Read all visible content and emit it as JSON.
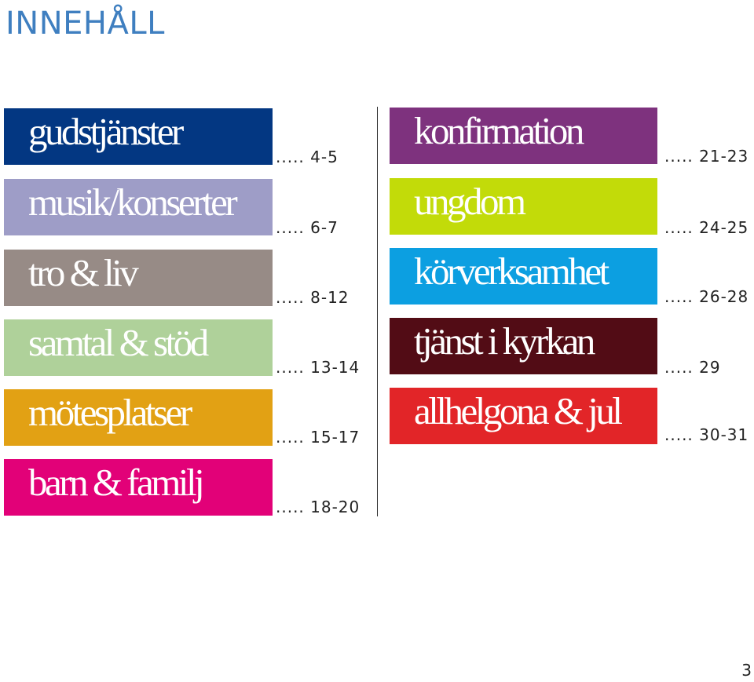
{
  "title": "INNEHÅLL",
  "page_number": "3",
  "left_items": [
    {
      "label": "gudstjänster",
      "pages": "..... 4-5",
      "color": "#033782"
    },
    {
      "label": "musik/konserter",
      "pages": "..... 6-7",
      "color": "#9e9dc7"
    },
    {
      "label": "tro & liv",
      "pages": "..... 8-12",
      "color": "#978b86"
    },
    {
      "label": "samtal & stöd",
      "pages": "..... 13-14",
      "color": "#afd19a"
    },
    {
      "label": "mötesplatser",
      "pages": "..... 15-17",
      "color": "#e2a114"
    },
    {
      "label": "barn & familj",
      "pages": "..... 18-20",
      "color": "#e20178"
    }
  ],
  "right_items": [
    {
      "label": "konfirmation",
      "pages": "..... 21-23",
      "color": "#7e327e"
    },
    {
      "label": "ungdom",
      "pages": "..... 24-25",
      "color": "#c2db09"
    },
    {
      "label": "körverksamhet",
      "pages": "..... 26-28",
      "color": "#0c9fe1"
    },
    {
      "label": "tjänst i kyrkan",
      "pages": "..... 29",
      "color": "#520c15"
    },
    {
      "label": "allhelgona & jul",
      "pages": "..... 30-31",
      "color": "#e22528"
    }
  ]
}
